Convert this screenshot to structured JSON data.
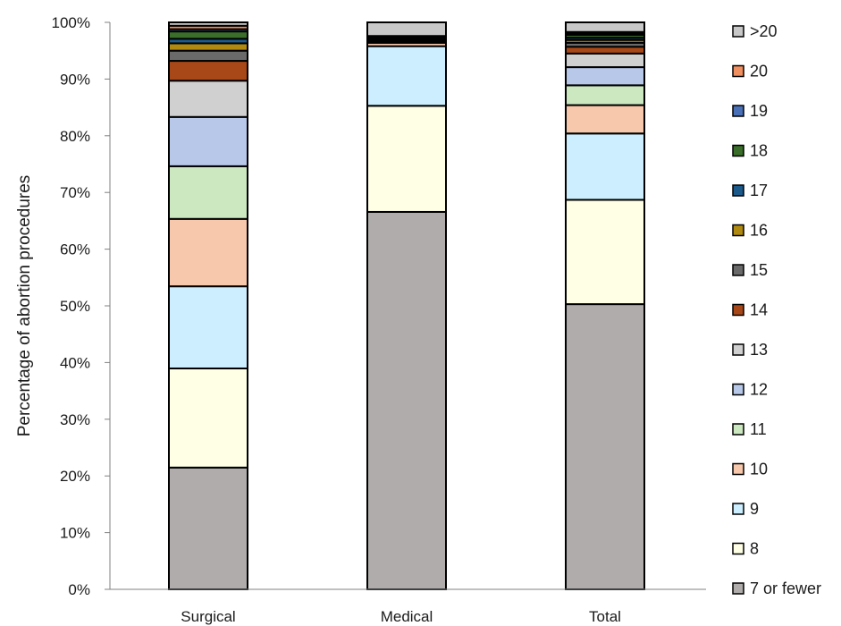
{
  "chart_data": {
    "type": "bar",
    "stacked": true,
    "normalized": true,
    "title": "",
    "xlabel": "",
    "ylabel": "Percentage of abortion procedures",
    "ylim": [
      0,
      100
    ],
    "yticks": [
      "0%",
      "10%",
      "20%",
      "30%",
      "40%",
      "50%",
      "60%",
      "70%",
      "80%",
      "90%",
      "100%"
    ],
    "grid": false,
    "legend_position": "right",
    "categories": [
      "Surgical",
      "Medical",
      "Total"
    ],
    "series": [
      {
        "name": "7 or fewer",
        "color": "#b0acac",
        "values": [
          21.5,
          66.5,
          50.3
        ]
      },
      {
        "name": "8",
        "color": "#ffffe6",
        "values": [
          17.5,
          18.7,
          18.4
        ]
      },
      {
        "name": "9",
        "color": "#cceeff",
        "values": [
          14.5,
          10.5,
          11.7
        ]
      },
      {
        "name": "10",
        "color": "#f8c8ac",
        "values": [
          11.9,
          0.6,
          5.0
        ]
      },
      {
        "name": "11",
        "color": "#cce8c0",
        "values": [
          9.3,
          0.2,
          3.5
        ]
      },
      {
        "name": "12",
        "color": "#b8c8e8",
        "values": [
          8.7,
          0.2,
          3.2
        ]
      },
      {
        "name": "13",
        "color": "#d0d0d0",
        "values": [
          6.4,
          0.1,
          2.4
        ]
      },
      {
        "name": "14",
        "color": "#a84818",
        "values": [
          3.5,
          0.1,
          1.2
        ]
      },
      {
        "name": "15",
        "color": "#6a6a6a",
        "values": [
          1.8,
          0.1,
          0.7
        ]
      },
      {
        "name": "16",
        "color": "#b08a10",
        "values": [
          1.3,
          0.1,
          0.5
        ]
      },
      {
        "name": "17",
        "color": "#1c5a8c",
        "values": [
          0.8,
          0.1,
          0.4
        ]
      },
      {
        "name": "18",
        "color": "#3a6e2a",
        "values": [
          1.3,
          0.1,
          0.5
        ]
      },
      {
        "name": "19",
        "color": "#4a70b8",
        "values": [
          0.4,
          0.1,
          0.2
        ]
      },
      {
        "name": "20",
        "color": "#f09060",
        "values": [
          0.6,
          0.1,
          0.3
        ]
      },
      {
        "name": ">20",
        "color": "#c8c8c8",
        "values": [
          0.6,
          2.4,
          1.7
        ]
      }
    ]
  }
}
